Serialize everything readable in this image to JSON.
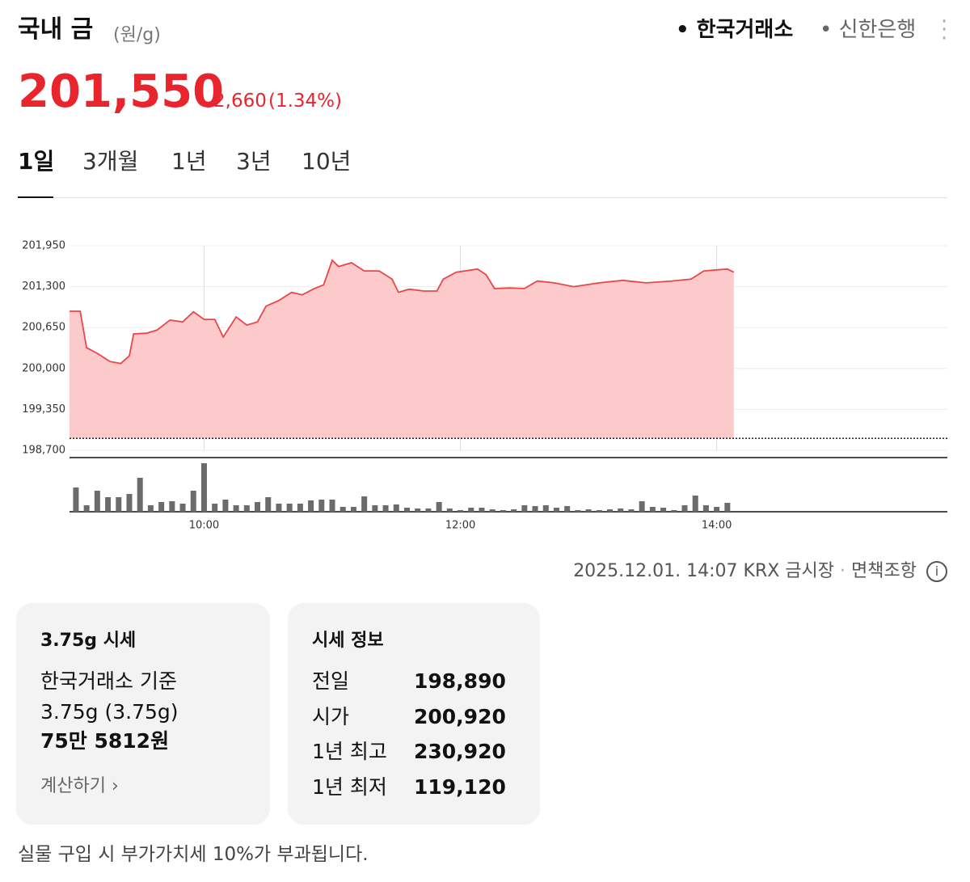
{
  "header": {
    "title": "국내 금",
    "unit": "(원/g)",
    "sources": [
      "한국거래소",
      "신한은행"
    ],
    "price": "201,550",
    "change": "2,660",
    "change_pct": "(1.34%)"
  },
  "tabs": [
    "1일",
    "3개월",
    "1년",
    "3년",
    "10년"
  ],
  "chart_data": {
    "type": "area",
    "series": [
      {
        "color": "#e8474a",
        "fill_color": "#fccacb",
        "x": [
          537,
          542,
          545,
          550,
          556,
          561,
          565,
          567,
          573,
          578,
          584,
          590,
          595,
          600,
          605,
          609,
          615,
          620,
          625,
          629,
          635,
          641,
          646,
          651,
          656,
          660,
          663,
          669,
          675,
          682,
          688,
          691,
          696,
          703,
          709,
          712,
          718,
          728,
          732,
          736,
          743,
          750,
          756,
          764,
          773,
          785,
          796,
          807,
          819,
          828,
          834,
          845,
          848
        ],
        "values": [
          200910,
          200910,
          200330,
          200240,
          200110,
          200080,
          200200,
          200550,
          200560,
          200610,
          200770,
          200740,
          200900,
          200780,
          200780,
          200500,
          200820,
          200690,
          200740,
          200990,
          201080,
          201210,
          201170,
          201260,
          201330,
          201720,
          201620,
          201680,
          201550,
          201550,
          201420,
          201210,
          201260,
          201230,
          201230,
          201420,
          201530,
          201580,
          201490,
          201270,
          201280,
          201270,
          201390,
          201360,
          201300,
          201360,
          201400,
          201360,
          201390,
          201420,
          201550,
          201580,
          201530
        ]
      }
    ],
    "previous_close": 198890,
    "xlim": [
      537,
      948
    ],
    "xticks": [
      {
        "value": 600,
        "label": "10:00"
      },
      {
        "value": 720,
        "label": "12:00"
      },
      {
        "value": 840,
        "label": "14:00"
      }
    ],
    "ylim": [
      198700,
      201950
    ],
    "yticks": [
      {
        "value": 198700,
        "label": "198,700"
      },
      {
        "value": 199350,
        "label": "199,350"
      },
      {
        "value": 200000,
        "label": "200,000"
      },
      {
        "value": 200650,
        "label": "200,650"
      },
      {
        "value": 201300,
        "label": "201,300"
      },
      {
        "value": 201950,
        "label": "201,950"
      }
    ],
    "grid": true,
    "volume": {
      "color": "#6b6b6b",
      "x": [
        540,
        545,
        550,
        555,
        560,
        565,
        570,
        575,
        580,
        585,
        590,
        595,
        600,
        605,
        610,
        615,
        620,
        625,
        630,
        635,
        640,
        645,
        650,
        655,
        660,
        665,
        670,
        675,
        680,
        685,
        690,
        695,
        700,
        705,
        710,
        715,
        720,
        725,
        730,
        735,
        740,
        745,
        750,
        755,
        760,
        765,
        770,
        775,
        780,
        785,
        790,
        795,
        800,
        805,
        810,
        815,
        820,
        825,
        830,
        835,
        840,
        845
      ],
      "values": [
        30,
        8,
        26,
        18,
        18,
        22,
        42,
        8,
        12,
        13,
        10,
        26,
        60,
        10,
        15,
        8,
        8,
        12,
        18,
        10,
        10,
        10,
        14,
        15,
        15,
        6,
        6,
        19,
        8,
        8,
        9,
        5,
        4,
        4,
        12,
        4,
        2,
        5,
        5,
        3,
        2,
        3,
        8,
        7,
        8,
        5,
        7,
        2,
        3,
        2,
        3,
        4,
        3,
        13,
        6,
        5,
        2,
        8,
        20,
        8,
        6,
        11
      ]
    }
  },
  "footer": {
    "timestamp": "2025.12.01. 14:07 KRX 금시장",
    "disclaimer": "면책조항"
  },
  "card_price": {
    "title": "3.75g 시세",
    "basis": "한국거래소 기준",
    "weight": "3.75g (3.75g)",
    "amount": "75만 5812원",
    "link": "계산하기"
  },
  "card_info": {
    "title": "시세 정보",
    "rows": [
      [
        "전일",
        "198,890"
      ],
      [
        "시가",
        "200,920"
      ],
      [
        "1년 최고",
        "230,920"
      ],
      [
        "1년 최저",
        "119,120"
      ]
    ]
  },
  "note": "실물 구입 시 부가가치세 10%가 부과됩니다."
}
